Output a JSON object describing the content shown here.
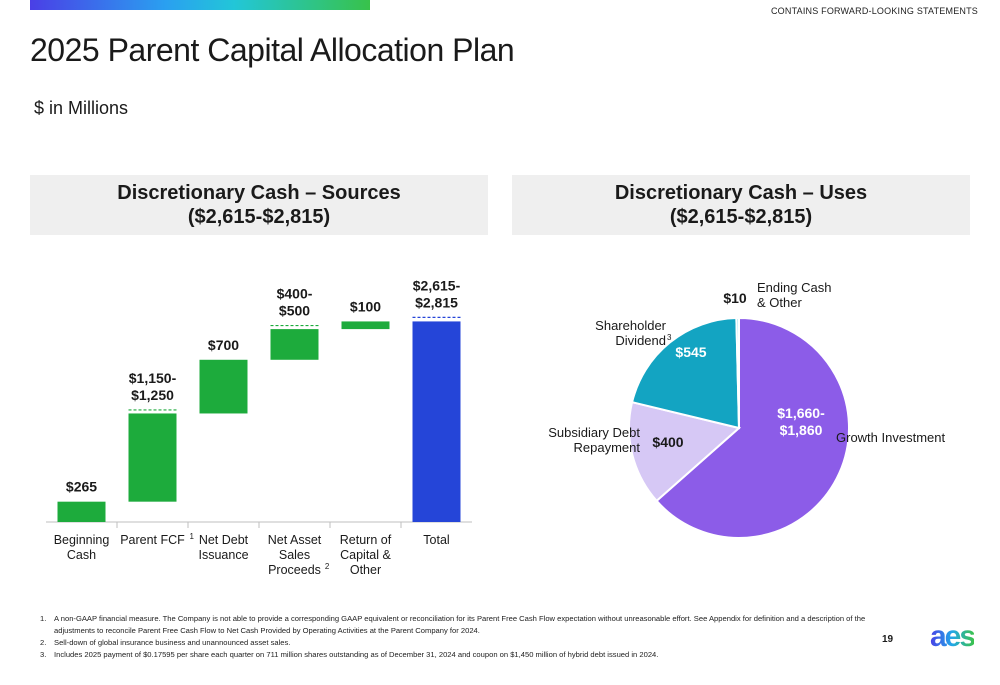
{
  "header": {
    "notice": "CONTAINS FORWARD-LOOKING STATEMENTS",
    "title": "2025 Parent Capital Allocation Plan",
    "subtitle": "$ in Millions"
  },
  "sources_panel": {
    "title_line1": "Discretionary Cash – Sources",
    "title_line2": "($2,615-$2,815)"
  },
  "uses_panel": {
    "title_line1": "Discretionary Cash – Uses",
    "title_line2": "($2,615-$2,815)"
  },
  "colors": {
    "green": "#1dab3c",
    "blue": "#2545d8",
    "purple": "#8c5ce8",
    "lavender": "#d6c8f5",
    "teal": "#13a4c2",
    "light_blue": "#a8e2f0"
  },
  "chart_data": [
    {
      "type": "bar",
      "subtype": "waterfall",
      "categories": [
        {
          "lines": [
            "Beginning",
            "Cash"
          ],
          "sup": ""
        },
        {
          "lines": [
            "Parent FCF"
          ],
          "sup": "1"
        },
        {
          "lines": [
            "Net Debt",
            "Issuance"
          ],
          "sup": ""
        },
        {
          "lines": [
            "Net Asset",
            "Sales",
            "Proceeds"
          ],
          "sup": "2"
        },
        {
          "lines": [
            "Return of",
            "Capital &",
            "Other"
          ],
          "sup": ""
        },
        {
          "lines": [
            "Total"
          ],
          "sup": ""
        }
      ],
      "steps": [
        {
          "low": 265,
          "high": 265,
          "kind": "increase",
          "labels": [
            "$265"
          ]
        },
        {
          "low": 1150,
          "high": 1250,
          "kind": "increase",
          "labels": [
            "$1,150-",
            "$1,250"
          ]
        },
        {
          "low": 700,
          "high": 700,
          "kind": "increase",
          "labels": [
            "$700"
          ]
        },
        {
          "low": 400,
          "high": 500,
          "kind": "increase",
          "labels": [
            "$400-",
            "$500"
          ]
        },
        {
          "low": 100,
          "high": 100,
          "kind": "increase",
          "labels": [
            "$100"
          ]
        },
        {
          "low": 2615,
          "high": 2815,
          "kind": "total",
          "labels": [
            "$2,615-",
            "$2,815"
          ]
        }
      ],
      "ylim": [
        0,
        3000
      ]
    },
    {
      "type": "pie",
      "slices": [
        {
          "name": "Growth Investment",
          "low": 1660,
          "high": 1860,
          "value_labels": [
            "$1,660-",
            "$1,860"
          ],
          "name_lines": [
            "Growth Investment"
          ],
          "sup": "",
          "color": "#8c5ce8"
        },
        {
          "name": "Subsidiary Debt Repayment",
          "low": 400,
          "high": 400,
          "value_labels": [
            "$400"
          ],
          "name_lines": [
            "Subsidiary Debt",
            "Repayment"
          ],
          "sup": "",
          "color": "#d6c8f5"
        },
        {
          "name": "Shareholder Dividend",
          "low": 545,
          "high": 545,
          "value_labels": [
            "$545"
          ],
          "name_lines": [
            "Shareholder",
            "Dividend"
          ],
          "sup": "3",
          "color": "#13a4c2"
        },
        {
          "name": "Ending Cash & Other",
          "low": 10,
          "high": 10,
          "value_labels": [
            "$10"
          ],
          "name_lines": [
            "Ending Cash",
            "& Other"
          ],
          "sup": "",
          "color": "#a8e2f0"
        }
      ]
    }
  ],
  "footnotes": [
    {
      "num": "1.",
      "text": "A non-GAAP financial measure.  The Company is not able to provide a corresponding GAAP equivalent or reconciliation for its Parent Free Cash Flow expectation without unreasonable effort. See Appendix for definition and a description of the adjustments to reconcile Parent Free Cash Flow to Net Cash Provided by Operating Activities at the Parent Company for 2024."
    },
    {
      "num": "2.",
      "text": "Sell-down of global insurance business and unannounced asset sales."
    },
    {
      "num": "3.",
      "text": "Includes 2025 payment of $0.17595 per share each quarter on 711 million shares outstanding as of December 31, 2024 and coupon on $1,450 million of hybrid debt issued in 2024."
    }
  ],
  "page_number": "19",
  "logo_text": "aes"
}
